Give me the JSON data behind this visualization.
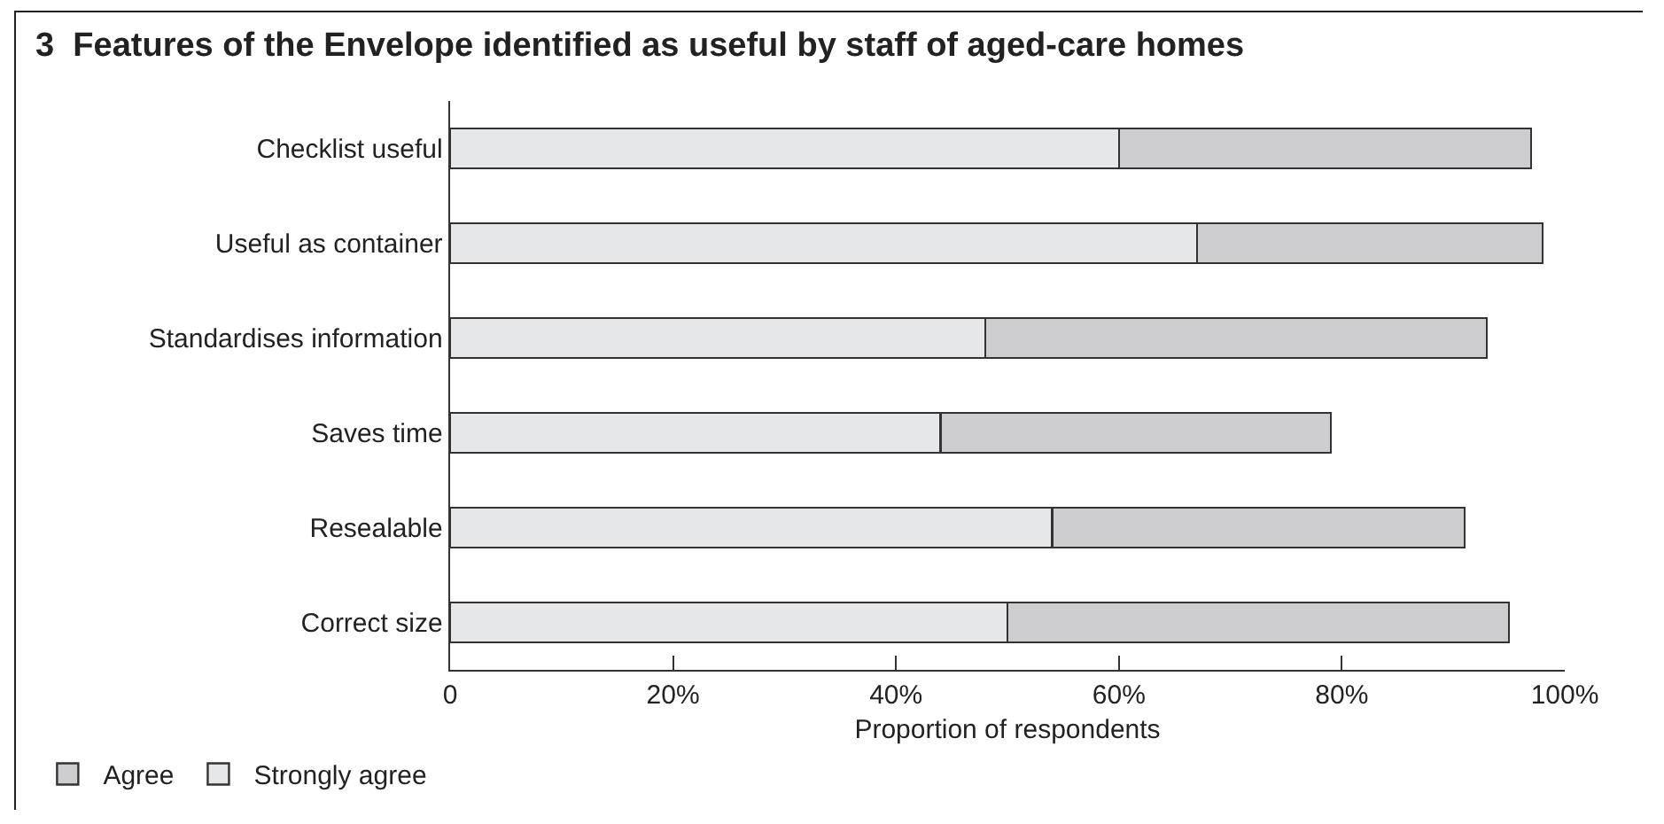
{
  "chart_data": {
    "type": "bar",
    "orientation": "horizontal",
    "stacked": true,
    "title": "3  Features of the Envelope identified as useful by staff of aged-care homes",
    "xlabel": "Proportion of respondents",
    "categories": [
      "Checklist useful",
      "Useful as container",
      "Standardises information",
      "Saves time",
      "Resealable",
      "Correct size"
    ],
    "series": [
      {
        "name": "Strongly agree",
        "color": "#e6e7e9",
        "values": [
          60,
          67,
          48,
          44,
          54,
          50
        ]
      },
      {
        "name": "Agree",
        "color": "#cdcdd0",
        "values": [
          37,
          31,
          45,
          35,
          37,
          45
        ]
      }
    ],
    "xlim": [
      0,
      100
    ],
    "xticks": [
      0,
      {
        "value": 20,
        "label": "20%"
      },
      {
        "value": 40,
        "label": "40%"
      },
      {
        "value": 60,
        "label": "60%"
      },
      {
        "value": 80,
        "label": "80%"
      },
      {
        "value": 100,
        "label": "100%"
      }
    ],
    "grid": false,
    "legend": "bottom left"
  }
}
